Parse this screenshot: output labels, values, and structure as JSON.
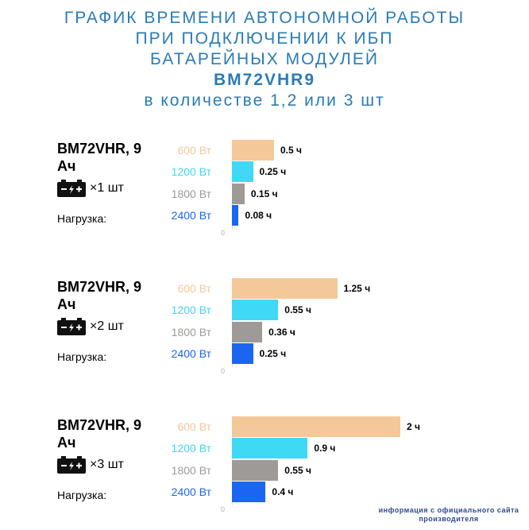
{
  "title": {
    "line1": "ГРАФИК ВРЕМЕНИ АВТОНОМНОЙ РАБОТЫ",
    "line2": "ПРИ ПОДКЛЮЧЕНИИ К ИБП",
    "line3": "БАТАРЕЙНЫХ МОДУЛЕЙ",
    "line4": "BM72VHR9",
    "line5": "в количестве 1,2 или 3 шт"
  },
  "footnote": "информация с официального сайта производителя",
  "icons": {
    "battery": "battery-icon"
  },
  "colors": {
    "title": "#2a7bb5",
    "600 Вт": "#f5c89a",
    "1200 Вт": "#3fd8f5",
    "1800 Вт": "#9e9a98",
    "2400 Вт": "#1a66f0"
  },
  "chart_data": [
    {
      "type": "bar",
      "orientation": "horizontal",
      "model": "BM72VHR, 9 Ач",
      "quantity": "×1 шт",
      "load_label": "Нагрузка:",
      "categories": [
        "600 Вт",
        "1200 Вт",
        "1800 Вт",
        "2400 Вт"
      ],
      "values": [
        0.5,
        0.25,
        0.15,
        0.08
      ],
      "value_labels": [
        "0.5 ч",
        "0.25 ч",
        "0.15 ч",
        "0.08 ч"
      ],
      "axis_zero_label": "0"
    },
    {
      "type": "bar",
      "orientation": "horizontal",
      "model": "BM72VHR, 9 Ач",
      "quantity": "×2 шт",
      "load_label": "Нагрузка:",
      "categories": [
        "600 Вт",
        "1200 Вт",
        "1800 Вт",
        "2400 Вт"
      ],
      "values": [
        1.25,
        0.55,
        0.36,
        0.25
      ],
      "value_labels": [
        "1.25 ч",
        "0.55 ч",
        "0.36 ч",
        "0.25 ч"
      ],
      "axis_zero_label": "0"
    },
    {
      "type": "bar",
      "orientation": "horizontal",
      "model": "BM72VHR, 9 Ач",
      "quantity": "×3 шт",
      "load_label": "Нагрузка:",
      "categories": [
        "600 Вт",
        "1200 Вт",
        "1800 Вт",
        "2400 Вт"
      ],
      "values": [
        2,
        0.9,
        0.55,
        0.4
      ],
      "value_labels": [
        "2 ч",
        "0.9 ч",
        "0.55 ч",
        "0.4 ч"
      ],
      "axis_zero_label": "0"
    }
  ]
}
